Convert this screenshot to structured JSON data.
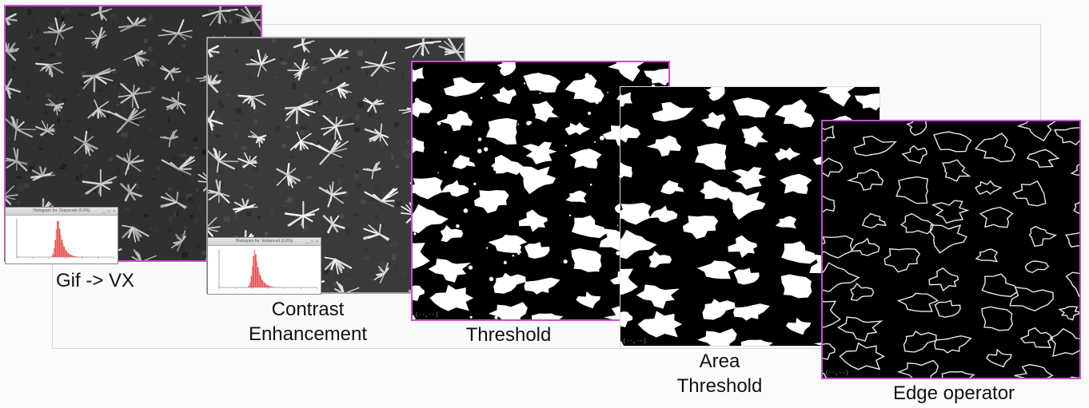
{
  "steps": [
    {
      "id": "gif",
      "caption": [
        "Gif -> VX"
      ],
      "histogram": {
        "title": "Histogram for: Grayscale (0.0%)",
        "controls": "_ □ ×"
      }
    },
    {
      "id": "contrast",
      "caption": [
        "Contrast",
        "Enhancement"
      ],
      "histogram": {
        "title": "Histogram for: Enhanced (0.0%)",
        "controls": "_ □ ×"
      }
    },
    {
      "id": "threshold",
      "caption": [
        "Threshold"
      ],
      "coord": "(--,--)"
    },
    {
      "id": "area",
      "caption": [
        "Area",
        "Threshold"
      ],
      "coord": "(--,--)"
    },
    {
      "id": "edge",
      "caption": [
        "Edge operator"
      ],
      "coord": "(--,--)"
    }
  ],
  "colors": {
    "panel_border_accent": "#c94fd0",
    "histogram_bar": "#e64646",
    "histogram_bar_light": "#f08a8a",
    "coord_text": "#2fd52f"
  }
}
